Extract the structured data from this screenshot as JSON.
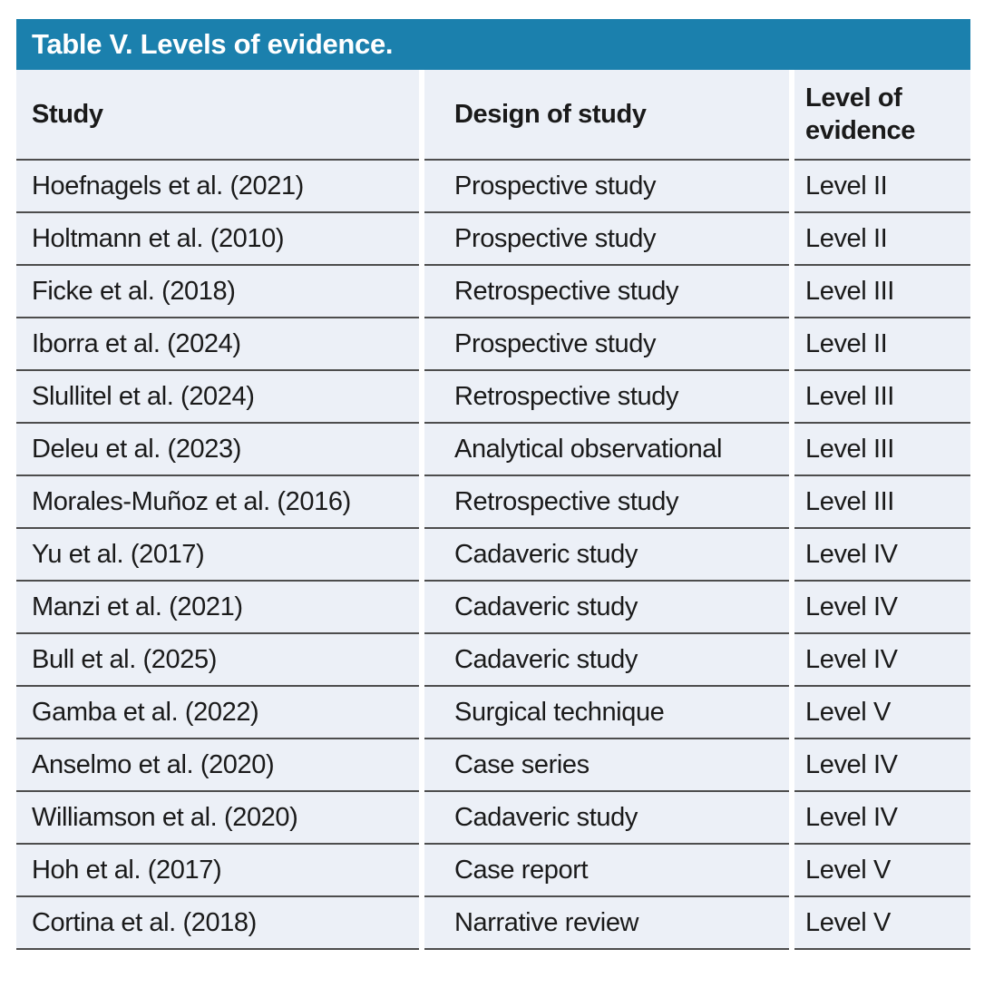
{
  "table": {
    "title": "Table V. Levels of evidence.",
    "columns": {
      "study": "Study",
      "design": "Design of study",
      "level": "Level of evidence"
    },
    "rows": [
      {
        "study": "Hoefnagels et al. (2021)",
        "design": "Prospective study",
        "level": "Level II"
      },
      {
        "study": "Holtmann et al. (2010)",
        "design": "Prospective study",
        "level": "Level II"
      },
      {
        "study": "Ficke et al. (2018)",
        "design": "Retrospective study",
        "level": "Level III"
      },
      {
        "study": "Iborra et al. (2024)",
        "design": "Prospective study",
        "level": "Level II"
      },
      {
        "study": "Slullitel et al. (2024)",
        "design": "Retrospective study",
        "level": "Level III"
      },
      {
        "study": "Deleu et al. (2023)",
        "design": "Analytical observational",
        "level": "Level III"
      },
      {
        "study": "Morales-Muñoz et al. (2016)",
        "design": "Retrospective study",
        "level": "Level III"
      },
      {
        "study": "Yu et al. (2017)",
        "design": "Cadaveric study",
        "level": "Level IV"
      },
      {
        "study": "Manzi et al. (2021)",
        "design": "Cadaveric study",
        "level": "Level IV"
      },
      {
        "study": "Bull et al. (2025)",
        "design": "Cadaveric study",
        "level": "Level IV"
      },
      {
        "study": "Gamba et al. (2022)",
        "design": "Surgical technique",
        "level": "Level V"
      },
      {
        "study": "Anselmo et al. (2020)",
        "design": "Case series",
        "level": "Level IV"
      },
      {
        "study": "Williamson et al. (2020)",
        "design": "Cadaveric study",
        "level": "Level IV"
      },
      {
        "study": "Hoh et al. (2017)",
        "design": "Case report",
        "level": "Level V"
      },
      {
        "study": "Cortina et al. (2018)",
        "design": "Narrative review",
        "level": "Level V"
      }
    ]
  },
  "colors": {
    "title_band_bg": "#1b80ad",
    "title_text": "#ffffff",
    "row_bg": "#ecf0f7",
    "separator": "#4d4d4d",
    "body_text": "#1a1a1a",
    "page_bg": "#ffffff"
  }
}
